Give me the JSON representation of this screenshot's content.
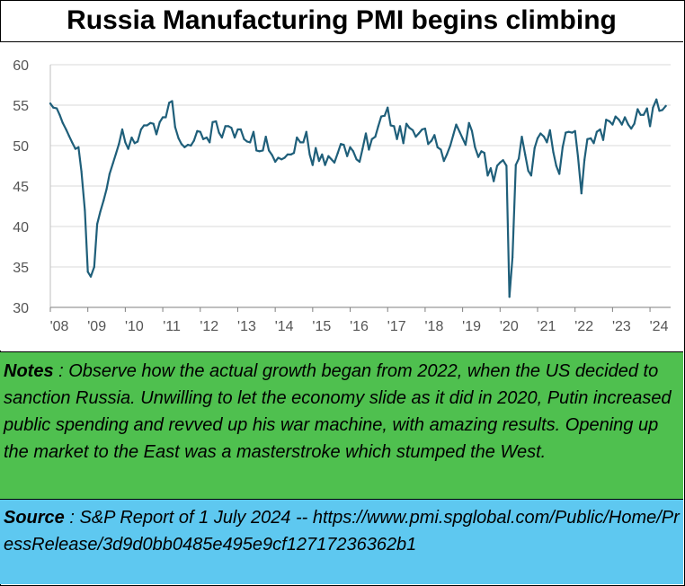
{
  "title": "Russia Manufacturing PMI begins climbing",
  "notes": {
    "label": "Notes",
    "text": " : Observe how the actual growth began from 2022, when the US decided to sanction Russia.  Unwilling to let the economy slide as it did in 2020, Putin increased public spending and revved up his war machine, with amazing results.  Opening up the market to the East was a masterstroke which stumped the West."
  },
  "source": {
    "label": "Source",
    "text": " : S&P Report of  1 July 2024 -- https://www.pmi.spglobal.com/Public/Home/PressRelease/3d9d0bb0485e495e9cf12717236362b1"
  },
  "colors": {
    "line": "#1f5f7a",
    "grid": "#d9d9d9",
    "notes_bg": "#4fc04f",
    "source_bg": "#5ec8f0"
  },
  "chart_data": {
    "type": "line",
    "title": "Russia Manufacturing PMI begins climbing",
    "xlabel": "",
    "ylabel": "",
    "ylim": [
      30,
      60
    ],
    "yticks": [
      30,
      35,
      40,
      45,
      50,
      55,
      60
    ],
    "xlim": [
      2008.0,
      2024.55
    ],
    "xticks": [
      {
        "v": 2008,
        "label": "'08"
      },
      {
        "v": 2009,
        "label": "'09"
      },
      {
        "v": 2010,
        "label": "'10"
      },
      {
        "v": 2011,
        "label": "'11"
      },
      {
        "v": 2012,
        "label": "'12"
      },
      {
        "v": 2013,
        "label": "'13"
      },
      {
        "v": 2014,
        "label": "'14"
      },
      {
        "v": 2015,
        "label": "'15"
      },
      {
        "v": 2016,
        "label": "'16"
      },
      {
        "v": 2017,
        "label": "'17"
      },
      {
        "v": 2018,
        "label": "'18"
      },
      {
        "v": 2019,
        "label": "'19"
      },
      {
        "v": 2020,
        "label": "'20"
      },
      {
        "v": 2021,
        "label": "'21"
      },
      {
        "v": 2022,
        "label": "'22"
      },
      {
        "v": 2023,
        "label": "'23"
      },
      {
        "v": 2024,
        "label": "'24"
      }
    ],
    "grid": "horizontal",
    "series": [
      {
        "points": [
          [
            2008.0,
            55.2
          ],
          [
            2008.08,
            54.7
          ],
          [
            2008.17,
            54.6
          ],
          [
            2008.25,
            53.8
          ],
          [
            2008.33,
            52.8
          ],
          [
            2008.42,
            52.0
          ],
          [
            2008.5,
            51.2
          ],
          [
            2008.58,
            50.4
          ],
          [
            2008.67,
            49.6
          ],
          [
            2008.75,
            49.8
          ],
          [
            2008.83,
            46.8
          ],
          [
            2008.92,
            42.0
          ],
          [
            2009.0,
            34.4
          ],
          [
            2009.08,
            33.8
          ],
          [
            2009.17,
            35.0
          ],
          [
            2009.25,
            40.3
          ],
          [
            2009.33,
            41.8
          ],
          [
            2009.42,
            43.2
          ],
          [
            2009.5,
            44.6
          ],
          [
            2009.58,
            46.5
          ],
          [
            2009.67,
            47.8
          ],
          [
            2009.75,
            49.0
          ],
          [
            2009.83,
            50.2
          ],
          [
            2009.92,
            52.0
          ],
          [
            2010.0,
            50.4
          ],
          [
            2010.08,
            49.6
          ],
          [
            2010.17,
            51.0
          ],
          [
            2010.25,
            50.3
          ],
          [
            2010.33,
            50.5
          ],
          [
            2010.42,
            52.0
          ],
          [
            2010.5,
            52.5
          ],
          [
            2010.58,
            52.5
          ],
          [
            2010.67,
            52.8
          ],
          [
            2010.75,
            52.7
          ],
          [
            2010.83,
            51.4
          ],
          [
            2010.92,
            52.9
          ],
          [
            2011.0,
            53.5
          ],
          [
            2011.08,
            53.5
          ],
          [
            2011.17,
            55.3
          ],
          [
            2011.25,
            55.5
          ],
          [
            2011.33,
            52.3
          ],
          [
            2011.42,
            50.9
          ],
          [
            2011.5,
            50.2
          ],
          [
            2011.58,
            49.8
          ],
          [
            2011.67,
            50.1
          ],
          [
            2011.75,
            50.0
          ],
          [
            2011.83,
            50.6
          ],
          [
            2011.92,
            51.8
          ],
          [
            2012.0,
            51.7
          ],
          [
            2012.08,
            50.8
          ],
          [
            2012.17,
            51.0
          ],
          [
            2012.25,
            50.4
          ],
          [
            2012.33,
            52.9
          ],
          [
            2012.42,
            53.0
          ],
          [
            2012.5,
            51.6
          ],
          [
            2012.58,
            51.0
          ],
          [
            2012.67,
            52.4
          ],
          [
            2012.75,
            52.4
          ],
          [
            2012.83,
            52.2
          ],
          [
            2012.92,
            51.0
          ],
          [
            2013.0,
            52.0
          ],
          [
            2013.08,
            52.0
          ],
          [
            2013.17,
            50.8
          ],
          [
            2013.25,
            50.5
          ],
          [
            2013.33,
            50.4
          ],
          [
            2013.42,
            51.7
          ],
          [
            2013.5,
            49.4
          ],
          [
            2013.58,
            49.3
          ],
          [
            2013.67,
            49.4
          ],
          [
            2013.75,
            51.1
          ],
          [
            2013.83,
            49.4
          ],
          [
            2013.92,
            48.8
          ],
          [
            2014.0,
            48.0
          ],
          [
            2014.08,
            48.5
          ],
          [
            2014.17,
            48.3
          ],
          [
            2014.25,
            48.5
          ],
          [
            2014.33,
            48.9
          ],
          [
            2014.42,
            48.9
          ],
          [
            2014.5,
            49.1
          ],
          [
            2014.58,
            51.0
          ],
          [
            2014.67,
            50.4
          ],
          [
            2014.75,
            50.4
          ],
          [
            2014.83,
            51.7
          ],
          [
            2014.92,
            48.9
          ],
          [
            2015.0,
            47.6
          ],
          [
            2015.08,
            49.7
          ],
          [
            2015.17,
            48.1
          ],
          [
            2015.25,
            48.9
          ],
          [
            2015.33,
            47.6
          ],
          [
            2015.42,
            48.7
          ],
          [
            2015.5,
            48.3
          ],
          [
            2015.58,
            47.9
          ],
          [
            2015.67,
            49.1
          ],
          [
            2015.75,
            50.2
          ],
          [
            2015.83,
            50.1
          ],
          [
            2015.92,
            48.7
          ],
          [
            2016.0,
            49.8
          ],
          [
            2016.08,
            49.3
          ],
          [
            2016.17,
            48.3
          ],
          [
            2016.25,
            48.0
          ],
          [
            2016.33,
            49.6
          ],
          [
            2016.42,
            51.5
          ],
          [
            2016.5,
            49.5
          ],
          [
            2016.58,
            50.8
          ],
          [
            2016.67,
            51.1
          ],
          [
            2016.75,
            52.4
          ],
          [
            2016.83,
            53.6
          ],
          [
            2016.92,
            53.7
          ],
          [
            2017.0,
            54.7
          ],
          [
            2017.08,
            52.5
          ],
          [
            2017.17,
            52.4
          ],
          [
            2017.25,
            50.8
          ],
          [
            2017.33,
            52.4
          ],
          [
            2017.42,
            50.3
          ],
          [
            2017.5,
            52.7
          ],
          [
            2017.58,
            52.2
          ],
          [
            2017.67,
            51.9
          ],
          [
            2017.75,
            51.1
          ],
          [
            2017.83,
            51.5
          ],
          [
            2017.92,
            52.0
          ],
          [
            2018.0,
            52.1
          ],
          [
            2018.08,
            50.2
          ],
          [
            2018.17,
            50.6
          ],
          [
            2018.25,
            51.3
          ],
          [
            2018.33,
            49.8
          ],
          [
            2018.42,
            49.5
          ],
          [
            2018.5,
            48.1
          ],
          [
            2018.58,
            48.9
          ],
          [
            2018.67,
            50.0
          ],
          [
            2018.75,
            51.3
          ],
          [
            2018.83,
            52.6
          ],
          [
            2018.92,
            51.7
          ],
          [
            2019.0,
            50.9
          ],
          [
            2019.08,
            50.1
          ],
          [
            2019.17,
            52.8
          ],
          [
            2019.25,
            51.8
          ],
          [
            2019.33,
            49.8
          ],
          [
            2019.42,
            48.6
          ],
          [
            2019.5,
            49.3
          ],
          [
            2019.58,
            49.1
          ],
          [
            2019.67,
            46.3
          ],
          [
            2019.75,
            47.2
          ],
          [
            2019.83,
            45.6
          ],
          [
            2019.92,
            47.5
          ],
          [
            2020.0,
            47.9
          ],
          [
            2020.08,
            48.2
          ],
          [
            2020.17,
            47.5
          ],
          [
            2020.25,
            31.3
          ],
          [
            2020.33,
            36.2
          ],
          [
            2020.42,
            47.6
          ],
          [
            2020.5,
            48.4
          ],
          [
            2020.58,
            51.1
          ],
          [
            2020.67,
            48.9
          ],
          [
            2020.75,
            46.9
          ],
          [
            2020.83,
            46.3
          ],
          [
            2020.92,
            49.7
          ],
          [
            2021.0,
            50.9
          ],
          [
            2021.08,
            51.5
          ],
          [
            2021.17,
            51.1
          ],
          [
            2021.25,
            50.4
          ],
          [
            2021.33,
            51.9
          ],
          [
            2021.42,
            49.2
          ],
          [
            2021.5,
            47.5
          ],
          [
            2021.58,
            46.5
          ],
          [
            2021.67,
            49.8
          ],
          [
            2021.75,
            51.6
          ],
          [
            2021.83,
            51.7
          ],
          [
            2021.92,
            51.6
          ],
          [
            2022.0,
            51.8
          ],
          [
            2022.08,
            48.6
          ],
          [
            2022.17,
            44.1
          ],
          [
            2022.25,
            48.2
          ],
          [
            2022.33,
            50.8
          ],
          [
            2022.42,
            50.9
          ],
          [
            2022.5,
            50.3
          ],
          [
            2022.58,
            51.7
          ],
          [
            2022.67,
            52.0
          ],
          [
            2022.75,
            50.7
          ],
          [
            2022.83,
            53.2
          ],
          [
            2022.92,
            53.0
          ],
          [
            2023.0,
            52.6
          ],
          [
            2023.08,
            53.6
          ],
          [
            2023.17,
            53.2
          ],
          [
            2023.25,
            52.6
          ],
          [
            2023.33,
            53.5
          ],
          [
            2023.42,
            52.6
          ],
          [
            2023.5,
            52.1
          ],
          [
            2023.58,
            52.7
          ],
          [
            2023.67,
            54.5
          ],
          [
            2023.75,
            53.8
          ],
          [
            2023.83,
            53.8
          ],
          [
            2023.92,
            54.6
          ],
          [
            2024.0,
            52.4
          ],
          [
            2024.08,
            54.7
          ],
          [
            2024.17,
            55.7
          ],
          [
            2024.25,
            54.3
          ],
          [
            2024.33,
            54.4
          ],
          [
            2024.42,
            54.9
          ]
        ]
      }
    ]
  }
}
